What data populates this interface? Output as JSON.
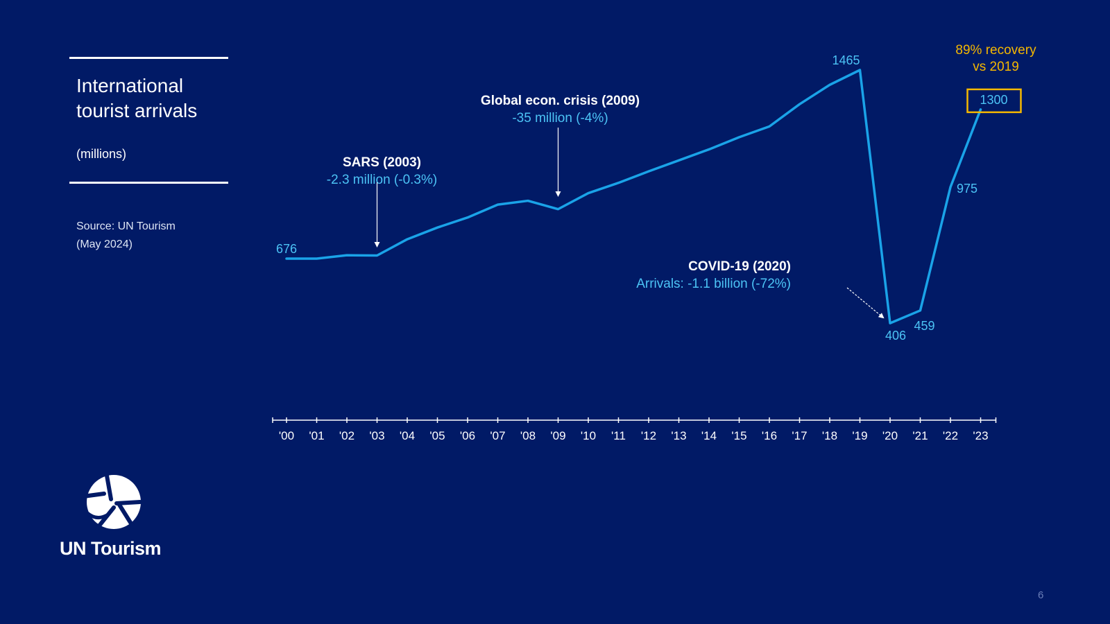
{
  "title_lines": [
    "International",
    "tourist arrivals"
  ],
  "units": "(millions)",
  "source_lines": [
    "Source: UN Tourism",
    "(May 2024)"
  ],
  "logo_text": "UN Tourism",
  "page_number": "6",
  "colors": {
    "background": "#011a66",
    "line": "#1aa3e8",
    "highlight": "#f5b800",
    "text": "#ffffff",
    "annotation_sub": "#4cc3f5"
  },
  "chart_data": {
    "type": "line",
    "title": "",
    "xlabel": "",
    "ylabel": "",
    "x": [
      "'00",
      "'01",
      "'02",
      "'03",
      "'04",
      "'05",
      "'06",
      "'07",
      "'08",
      "'09",
      "'10",
      "'11",
      "'12",
      "'13",
      "'14",
      "'15",
      "'16",
      "'17",
      "'18",
      "'19",
      "'20",
      "'21",
      "'22",
      "'23"
    ],
    "series": [
      {
        "values": [
          676,
          676,
          690,
          689,
          757,
          806,
          848,
          902,
          918,
          883,
          950,
          993,
          1041,
          1087,
          1133,
          1184,
          1229,
          1322,
          1403,
          1465,
          406,
          459,
          975,
          1300
        ]
      }
    ],
    "ylim": [
      0,
      1500
    ],
    "grid": false,
    "value_labels": [
      {
        "x_index": 0,
        "text": "676"
      },
      {
        "x_index": 19,
        "text": "1465"
      },
      {
        "x_index": 20,
        "text": "406"
      },
      {
        "x_index": 21,
        "text": "459"
      },
      {
        "x_index": 22,
        "text": "975"
      },
      {
        "x_index": 23,
        "text": "1300",
        "boxed": true
      }
    ],
    "annotations": [
      {
        "x_index": 3,
        "title": "SARS (2003)",
        "subtitle": "-2.3 million (-0.3%)"
      },
      {
        "x_index": 9,
        "title": "Global econ. crisis (2009)",
        "subtitle": "-35 million (-4%)"
      },
      {
        "x_index": 20,
        "title": "COVID-19 (2020)",
        "subtitle": "Arrivals: -1.1 billion (-72%)"
      }
    ],
    "callout": {
      "x_index": 23,
      "lines": [
        "89% recovery",
        "vs 2019"
      ]
    }
  }
}
